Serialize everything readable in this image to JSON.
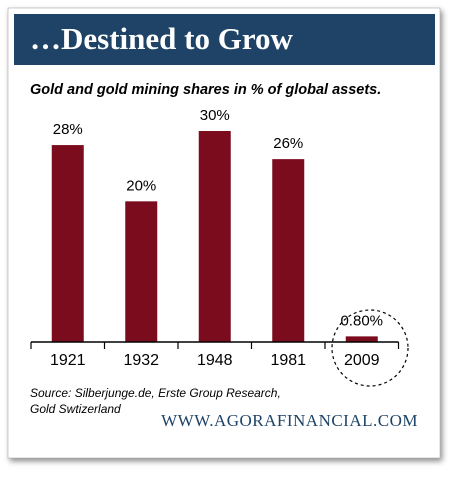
{
  "chart_data": {
    "type": "bar",
    "title": "…Destined to Grow",
    "subtitle": "Gold and gold mining shares in % of global assets.",
    "categories": [
      "1921",
      "1932",
      "1948",
      "1981",
      "2009"
    ],
    "values": [
      28,
      20,
      30,
      26,
      0.8
    ],
    "value_labels": [
      "28%",
      "20%",
      "30%",
      "26%",
      "0.80%"
    ],
    "color": "#7b0c1e",
    "source": [
      "Source: Silberjunge.de, Erste Group Research,",
      "Gold Swtizerland"
    ],
    "footer": "WWW.AGORAFINANCIAL.COM"
  }
}
